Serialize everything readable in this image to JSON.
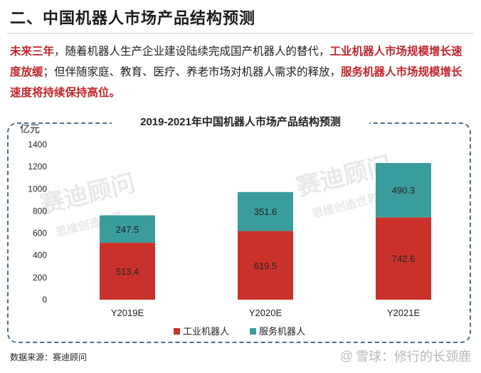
{
  "heading": "二、中国机器人市场产品结构预测",
  "intro": {
    "p1": "未来三年",
    "p2": "，随着机器人生产企业建设陆续完成国产机器人的替代，",
    "p3": "工业机器人市场规模增长速度放缓",
    "p4": "；但伴随家庭、教育、医疗、养老市场对机器人需求的释放，",
    "p5": "服务机器人市场规模增长速度将持续保持高位。"
  },
  "watermark": {
    "brand": "赛迪顾问",
    "slogan": "思维创造世界"
  },
  "source": "数据来源：赛迪顾问",
  "brand_footer": {
    "prefix": "@",
    "text": "雪球：修行的长颈鹿"
  },
  "colors": {
    "industrial": "#c9322b",
    "service": "#3b9d9b",
    "frame": "#4a6f8a",
    "accent_text": "#c0262d"
  },
  "chart_data": {
    "type": "bar",
    "stacked": true,
    "title": "2019-2021年中国机器人市场产品结构预测",
    "ylabel": "亿元",
    "xlabel": "",
    "ylim": [
      0,
      1400
    ],
    "yticks": [
      0,
      200,
      400,
      600,
      800,
      1000,
      1200,
      1400
    ],
    "categories": [
      "Y2019E",
      "Y2020E",
      "Y2021E"
    ],
    "series": [
      {
        "name": "工业机器人",
        "values": [
          513.4,
          619.5,
          742.6
        ]
      },
      {
        "name": "服务机器人",
        "values": [
          247.5,
          351.6,
          490.3
        ]
      }
    ],
    "legend_position": "bottom"
  }
}
